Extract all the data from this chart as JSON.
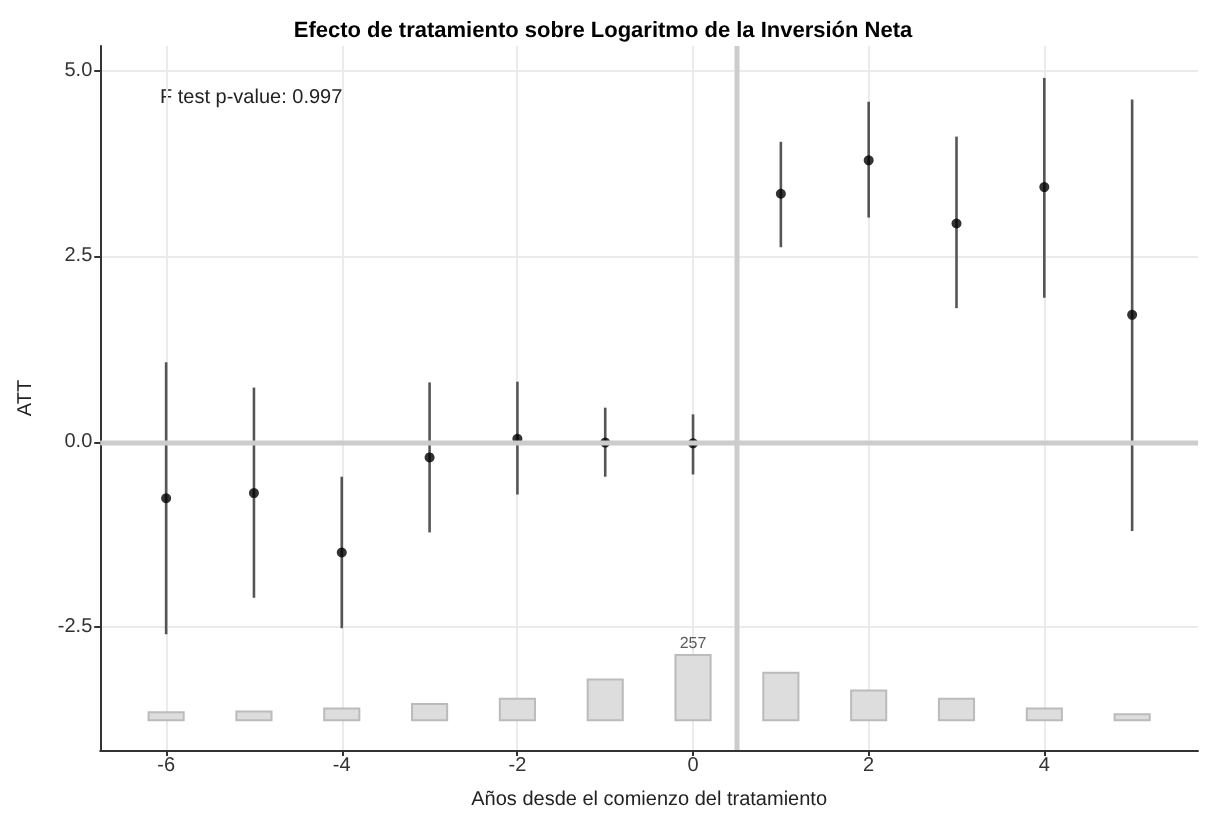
{
  "chart_data": {
    "type": "scatter",
    "title": "Efecto de tratamiento sobre Logaritmo de la Inversión Neta",
    "xlabel": "Años desde el comienzo del tratamiento",
    "ylabel": "ATT",
    "annotations": [
      "F test p-value: 0.997",
      {
        "text": "257",
        "x": 0,
        "y": -2.87
      }
    ],
    "series": [
      {
        "type": "bar",
        "color": "#dddddd",
        "x": [
          -6,
          -5,
          -4,
          -3,
          -2,
          -1,
          0,
          1,
          2,
          3,
          4,
          5
        ],
        "base": [
          -3.75,
          -3.75,
          -3.75,
          -3.75,
          -3.75,
          -3.75,
          -3.75,
          -3.75,
          -3.75,
          -3.75,
          -3.75,
          -3.75
        ],
        "values": [
          0.11,
          0.12,
          0.16,
          0.22,
          0.29,
          0.55,
          0.88,
          0.64,
          0.4,
          0.29,
          0.16,
          0.08
        ]
      },
      {
        "color": "#000000",
        "x": [
          -6,
          -5,
          -4,
          -3,
          -2,
          -1,
          0,
          1,
          2,
          3,
          4,
          5
        ],
        "values": [
          -0.76,
          -0.69,
          -1.49,
          -0.21,
          0.04,
          -0.01,
          -0.02,
          3.34,
          3.79,
          2.94,
          3.43,
          1.71
        ],
        "errors": [
          [
            -2.59,
            1.07
          ],
          [
            -2.1,
            0.73
          ],
          [
            -2.51,
            -0.47
          ],
          [
            -1.22,
            0.8
          ],
          [
            -0.71,
            0.81
          ],
          [
            -0.47,
            0.46
          ],
          [
            -0.44,
            0.37
          ],
          [
            2.62,
            4.04
          ],
          [
            3.02,
            4.58
          ],
          [
            1.8,
            4.11
          ],
          [
            1.94,
            4.9
          ],
          [
            -1.2,
            4.61
          ]
        ]
      }
    ],
    "xlim": [
      -6.75,
      5.75
    ],
    "xticks": [
      -6,
      -4,
      -2,
      0,
      2,
      4
    ],
    "ylim": [
      -4.15,
      5.33
    ],
    "yticks": [
      {
        "value": -2.5,
        "label": "-2.5"
      },
      {
        "value": 0,
        "label": "0.0"
      },
      {
        "value": 2.5,
        "label": "2.5"
      },
      {
        "value": 5,
        "label": "5.0"
      }
    ],
    "ref_lines": [
      {
        "axis": "y",
        "value": 0,
        "color": "#cccccc"
      },
      {
        "axis": "x",
        "value": 0.5,
        "color": "#cccccc"
      }
    ],
    "grid": true,
    "marker": "circle"
  }
}
